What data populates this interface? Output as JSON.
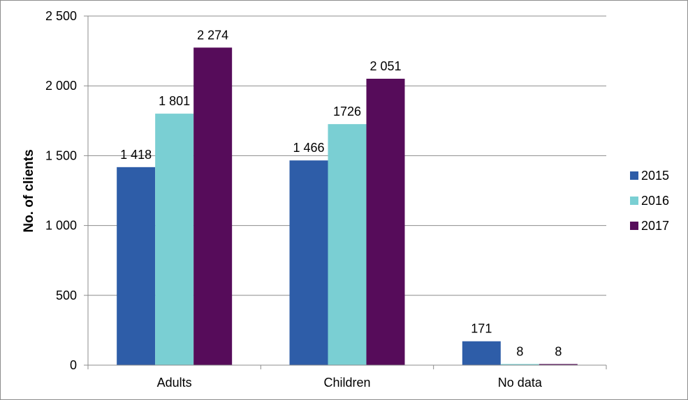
{
  "chart_data": {
    "type": "bar",
    "categories": [
      "Adults",
      "Children",
      "No data"
    ],
    "series": [
      {
        "name": "2015",
        "color": "#2E5DA8",
        "values": [
          1418,
          1466,
          171
        ],
        "labels": [
          "1 418",
          "1 466",
          "171"
        ]
      },
      {
        "name": "2016",
        "color": "#7ACFD3",
        "values": [
          1801,
          1726,
          8
        ],
        "labels": [
          "1 801",
          "1726",
          "8"
        ]
      },
      {
        "name": "2017",
        "color": "#560C5A",
        "values": [
          2274,
          2051,
          8
        ],
        "labels": [
          "2 274",
          "2 051",
          "8"
        ]
      }
    ],
    "title": "",
    "xlabel": "",
    "ylabel": "No. of clients",
    "ylim": [
      0,
      2500
    ],
    "yticks": [
      0,
      500,
      1000,
      1500,
      2000,
      2500
    ],
    "ytick_labels": [
      "0",
      "500",
      "1 000",
      "1 500",
      "2 000",
      "2 500"
    ],
    "grid": true,
    "legend_position": "right"
  }
}
